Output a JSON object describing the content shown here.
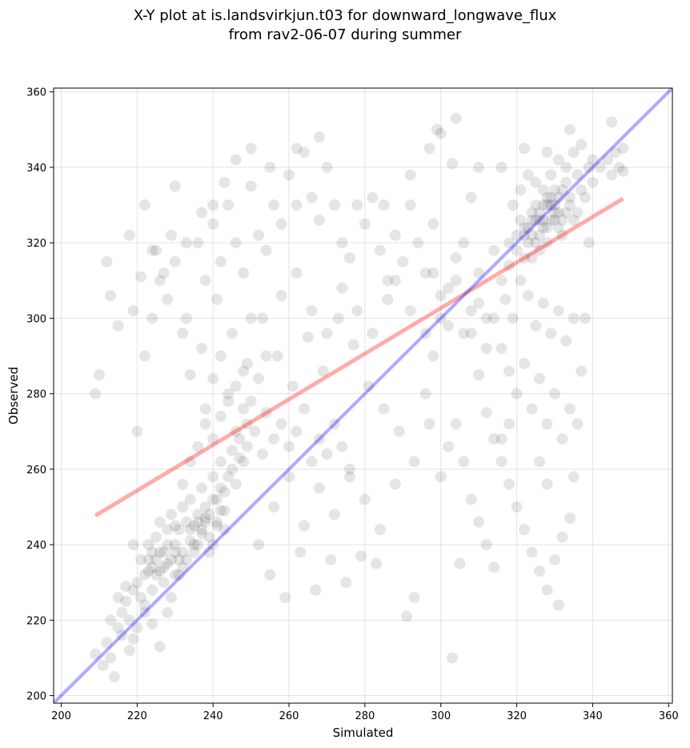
{
  "chart_data": {
    "type": "scatter",
    "title_line1": "X-Y plot at is.landsvirkjun.t03 for downward_longwave_flux",
    "title_line2": "from rav2-06-07 during summer",
    "xlabel": "Simulated",
    "ylabel": "Observed",
    "xlim": [
      198,
      361
    ],
    "ylim": [
      198,
      361
    ],
    "xticks": [
      200,
      220,
      240,
      260,
      280,
      300,
      320,
      340,
      360
    ],
    "yticks": [
      200,
      220,
      240,
      260,
      280,
      300,
      320,
      340,
      360
    ],
    "grid": true,
    "point_color": "#000000",
    "point_alpha": 0.1,
    "identity_line": {
      "color": "#0000ff",
      "x": [
        198,
        361
      ],
      "y": [
        198,
        361
      ]
    },
    "regression_line": {
      "color": "#ff0000",
      "x": [
        209,
        348
      ],
      "y": [
        247.7,
        331.7
      ]
    },
    "points": [
      [
        212,
        214
      ],
      [
        213,
        210
      ],
      [
        215,
        218
      ],
      [
        216,
        222
      ],
      [
        217,
        225
      ],
      [
        218,
        212
      ],
      [
        219,
        215
      ],
      [
        219,
        228
      ],
      [
        220,
        230
      ],
      [
        220,
        218
      ],
      [
        221,
        236
      ],
      [
        222,
        232
      ],
      [
        222,
        224
      ],
      [
        223,
        240
      ],
      [
        224,
        228
      ],
      [
        224,
        238
      ],
      [
        225,
        242
      ],
      [
        226,
        233
      ],
      [
        226,
        246
      ],
      [
        227,
        238
      ],
      [
        228,
        235
      ],
      [
        228,
        244
      ],
      [
        229,
        248
      ],
      [
        230,
        240
      ],
      [
        230,
        232
      ],
      [
        231,
        244
      ],
      [
        232,
        250
      ],
      [
        232,
        238
      ],
      [
        233,
        246
      ],
      [
        234,
        241
      ],
      [
        234,
        252
      ],
      [
        235,
        245
      ],
      [
        236,
        248
      ],
      [
        236,
        240
      ],
      [
        237,
        255
      ],
      [
        238,
        246
      ],
      [
        238,
        250
      ],
      [
        239,
        242
      ],
      [
        240,
        252
      ],
      [
        240,
        258
      ],
      [
        241,
        246
      ],
      [
        242,
        255
      ],
      [
        242,
        262
      ],
      [
        243,
        249
      ],
      [
        244,
        258
      ],
      [
        245,
        265
      ],
      [
        246,
        256
      ],
      [
        247,
        268
      ],
      [
        248,
        262
      ],
      [
        249,
        272
      ],
      [
        214,
        205
      ],
      [
        216,
        216
      ],
      [
        218,
        220
      ],
      [
        221,
        226
      ],
      [
        223,
        233
      ],
      [
        225,
        236
      ],
      [
        227,
        230
      ],
      [
        229,
        226
      ],
      [
        231,
        236
      ],
      [
        233,
        236
      ],
      [
        235,
        238
      ],
      [
        237,
        244
      ],
      [
        239,
        248
      ],
      [
        241,
        252
      ],
      [
        243,
        254
      ],
      [
        245,
        260
      ],
      [
        247,
        263
      ],
      [
        249,
        266
      ],
      [
        251,
        270
      ],
      [
        253,
        264
      ],
      [
        209,
        211
      ],
      [
        211,
        208
      ],
      [
        213,
        220
      ],
      [
        215,
        226
      ],
      [
        217,
        229
      ],
      [
        219,
        240
      ],
      [
        222,
        222
      ],
      [
        224,
        219
      ],
      [
        226,
        213
      ],
      [
        228,
        222
      ],
      [
        230,
        245
      ],
      [
        232,
        256
      ],
      [
        234,
        262
      ],
      [
        236,
        266
      ],
      [
        238,
        272
      ],
      [
        240,
        268
      ],
      [
        242,
        274
      ],
      [
        244,
        278
      ],
      [
        246,
        282
      ],
      [
        248,
        276
      ],
      [
        220,
        270
      ],
      [
        222,
        290
      ],
      [
        224,
        300
      ],
      [
        226,
        310
      ],
      [
        228,
        305
      ],
      [
        230,
        315
      ],
      [
        232,
        296
      ],
      [
        234,
        285
      ],
      [
        236,
        320
      ],
      [
        238,
        310
      ],
      [
        240,
        325
      ],
      [
        242,
        315
      ],
      [
        244,
        330
      ],
      [
        246,
        320
      ],
      [
        248,
        312
      ],
      [
        250,
        335
      ],
      [
        252,
        322
      ],
      [
        254,
        318
      ],
      [
        256,
        330
      ],
      [
        258,
        325
      ],
      [
        260,
        338
      ],
      [
        262,
        330
      ],
      [
        264,
        344
      ],
      [
        266,
        332
      ],
      [
        268,
        326
      ],
      [
        270,
        340
      ],
      [
        272,
        330
      ],
      [
        274,
        320
      ],
      [
        276,
        316
      ],
      [
        278,
        330
      ],
      [
        280,
        325
      ],
      [
        282,
        332
      ],
      [
        284,
        318
      ],
      [
        286,
        310
      ],
      [
        288,
        322
      ],
      [
        290,
        315
      ],
      [
        292,
        330
      ],
      [
        294,
        320
      ],
      [
        296,
        312
      ],
      [
        298,
        325
      ],
      [
        221,
        311
      ],
      [
        225,
        318
      ],
      [
        229,
        322
      ],
      [
        233,
        300
      ],
      [
        237,
        292
      ],
      [
        241,
        305
      ],
      [
        245,
        296
      ],
      [
        249,
        288
      ],
      [
        253,
        300
      ],
      [
        257,
        290
      ],
      [
        261,
        282
      ],
      [
        265,
        295
      ],
      [
        269,
        286
      ],
      [
        273,
        300
      ],
      [
        277,
        293
      ],
      [
        281,
        282
      ],
      [
        285,
        276
      ],
      [
        289,
        270
      ],
      [
        293,
        262
      ],
      [
        297,
        272
      ],
      [
        250,
        300
      ],
      [
        254,
        290
      ],
      [
        258,
        306
      ],
      [
        262,
        312
      ],
      [
        266,
        302
      ],
      [
        270,
        296
      ],
      [
        274,
        308
      ],
      [
        278,
        302
      ],
      [
        282,
        296
      ],
      [
        286,
        305
      ],
      [
        252,
        240
      ],
      [
        256,
        250
      ],
      [
        260,
        258
      ],
      [
        264,
        245
      ],
      [
        268,
        255
      ],
      [
        272,
        248
      ],
      [
        276,
        260
      ],
      [
        280,
        252
      ],
      [
        284,
        244
      ],
      [
        288,
        256
      ],
      [
        255,
        232
      ],
      [
        259,
        226
      ],
      [
        263,
        238
      ],
      [
        267,
        228
      ],
      [
        271,
        236
      ],
      [
        275,
        230
      ],
      [
        279,
        237
      ],
      [
        283,
        235
      ],
      [
        291,
        221
      ],
      [
        293,
        226
      ],
      [
        300,
        306
      ],
      [
        302,
        298
      ],
      [
        304,
        310
      ],
      [
        306,
        296
      ],
      [
        308,
        302
      ],
      [
        310,
        312
      ],
      [
        312,
        300
      ],
      [
        314,
        318
      ],
      [
        316,
        310
      ],
      [
        318,
        320
      ],
      [
        320,
        322
      ],
      [
        322,
        316
      ],
      [
        324,
        328
      ],
      [
        326,
        322
      ],
      [
        328,
        330
      ],
      [
        330,
        326
      ],
      [
        332,
        334
      ],
      [
        334,
        330
      ],
      [
        336,
        338
      ],
      [
        338,
        332
      ],
      [
        321,
        326
      ],
      [
        323,
        320
      ],
      [
        325,
        330
      ],
      [
        327,
        324
      ],
      [
        329,
        332
      ],
      [
        331,
        328
      ],
      [
        333,
        336
      ],
      [
        335,
        326
      ],
      [
        337,
        334
      ],
      [
        339,
        340
      ],
      [
        318,
        314
      ],
      [
        320,
        318
      ],
      [
        322,
        324
      ],
      [
        324,
        316
      ],
      [
        326,
        326
      ],
      [
        328,
        320
      ],
      [
        330,
        328
      ],
      [
        332,
        322
      ],
      [
        334,
        332
      ],
      [
        336,
        328
      ],
      [
        319,
        330
      ],
      [
        321,
        334
      ],
      [
        323,
        338
      ],
      [
        325,
        336
      ],
      [
        327,
        334
      ],
      [
        329,
        338
      ],
      [
        331,
        342
      ],
      [
        333,
        340
      ],
      [
        335,
        344
      ],
      [
        337,
        346
      ],
      [
        317,
        305
      ],
      [
        319,
        300
      ],
      [
        321,
        310
      ],
      [
        323,
        306
      ],
      [
        325,
        298
      ],
      [
        327,
        304
      ],
      [
        329,
        296
      ],
      [
        331,
        302
      ],
      [
        333,
        294
      ],
      [
        335,
        300
      ],
      [
        316,
        292
      ],
      [
        318,
        286
      ],
      [
        320,
        280
      ],
      [
        322,
        288
      ],
      [
        324,
        276
      ],
      [
        326,
        284
      ],
      [
        328,
        272
      ],
      [
        330,
        280
      ],
      [
        332,
        268
      ],
      [
        334,
        276
      ],
      [
        310,
        285
      ],
      [
        312,
        275
      ],
      [
        314,
        268
      ],
      [
        316,
        262
      ],
      [
        318,
        256
      ],
      [
        320,
        250
      ],
      [
        322,
        244
      ],
      [
        324,
        238
      ],
      [
        326,
        262
      ],
      [
        328,
        256
      ],
      [
        300,
        258
      ],
      [
        302,
        266
      ],
      [
        304,
        272
      ],
      [
        306,
        262
      ],
      [
        308,
        252
      ],
      [
        310,
        246
      ],
      [
        312,
        240
      ],
      [
        314,
        234
      ],
      [
        316,
        268
      ],
      [
        318,
        272
      ],
      [
        296,
        280
      ],
      [
        298,
        290
      ],
      [
        300,
        300
      ],
      [
        302,
        308
      ],
      [
        304,
        316
      ],
      [
        306,
        320
      ],
      [
        308,
        296
      ],
      [
        310,
        304
      ],
      [
        312,
        292
      ],
      [
        314,
        300
      ],
      [
        340,
        336
      ],
      [
        342,
        340
      ],
      [
        344,
        342
      ],
      [
        345,
        338
      ],
      [
        346,
        344
      ],
      [
        347,
        340
      ],
      [
        348,
        339
      ],
      [
        339,
        320
      ],
      [
        338,
        300
      ],
      [
        337,
        286
      ],
      [
        336,
        272
      ],
      [
        335,
        258
      ],
      [
        334,
        247
      ],
      [
        332,
        242
      ],
      [
        330,
        236
      ],
      [
        328,
        228
      ],
      [
        331,
        224
      ],
      [
        326,
        233
      ],
      [
        303,
        210
      ],
      [
        305,
        235
      ],
      [
        300,
        349
      ],
      [
        304,
        353
      ],
      [
        310,
        340
      ],
      [
        316,
        340
      ],
      [
        322,
        345
      ],
      [
        328,
        344
      ],
      [
        334,
        350
      ],
      [
        340,
        342
      ],
      [
        345,
        352
      ],
      [
        348,
        345
      ],
      [
        209,
        280
      ],
      [
        210,
        285
      ],
      [
        212,
        315
      ],
      [
        213,
        306
      ],
      [
        215,
        298
      ],
      [
        218,
        322
      ],
      [
        219,
        302
      ],
      [
        222,
        330
      ],
      [
        224,
        318
      ],
      [
        227,
        312
      ],
      [
        230,
        335
      ],
      [
        233,
        320
      ],
      [
        237,
        328
      ],
      [
        240,
        330
      ],
      [
        243,
        336
      ],
      [
        246,
        342
      ],
      [
        250,
        345
      ],
      [
        255,
        340
      ],
      [
        262,
        345
      ],
      [
        268,
        348
      ],
      [
        285,
        330
      ],
      [
        292,
        338
      ],
      [
        297,
        345
      ],
      [
        299,
        350
      ],
      [
        303,
        341
      ],
      [
        308,
        332
      ],
      [
        288,
        310
      ],
      [
        292,
        302
      ],
      [
        296,
        296
      ],
      [
        298,
        312
      ],
      [
        238,
        276
      ],
      [
        240,
        284
      ],
      [
        242,
        290
      ],
      [
        244,
        280
      ],
      [
        246,
        270
      ],
      [
        248,
        286
      ],
      [
        250,
        278
      ],
      [
        252,
        284
      ],
      [
        254,
        275
      ],
      [
        256,
        268
      ],
      [
        258,
        272
      ],
      [
        260,
        266
      ],
      [
        262,
        270
      ],
      [
        264,
        276
      ],
      [
        266,
        262
      ],
      [
        268,
        268
      ],
      [
        270,
        264
      ],
      [
        272,
        272
      ],
      [
        274,
        266
      ],
      [
        276,
        258
      ],
      [
        240,
        240
      ],
      [
        241,
        245
      ],
      [
        239,
        238
      ],
      [
        238,
        247
      ],
      [
        237,
        243
      ],
      [
        236,
        246
      ],
      [
        242,
        249
      ],
      [
        243,
        244
      ],
      [
        235,
        240
      ],
      [
        234,
        244
      ],
      [
        228,
        240
      ],
      [
        229,
        236
      ],
      [
        227,
        234
      ],
      [
        226,
        238
      ],
      [
        225,
        232
      ],
      [
        230,
        238
      ],
      [
        231,
        232
      ],
      [
        232,
        234
      ],
      [
        224,
        234
      ],
      [
        223,
        236
      ],
      [
        324,
        322
      ],
      [
        325,
        326
      ],
      [
        326,
        328
      ],
      [
        327,
        326
      ],
      [
        328,
        324
      ],
      [
        329,
        326
      ],
      [
        330,
        330
      ],
      [
        331,
        324
      ],
      [
        332,
        326
      ],
      [
        333,
        328
      ],
      [
        322,
        322
      ],
      [
        323,
        324
      ],
      [
        324,
        326
      ],
      [
        325,
        320
      ],
      [
        326,
        318
      ],
      [
        327,
        330
      ],
      [
        328,
        332
      ],
      [
        329,
        330
      ],
      [
        330,
        334
      ],
      [
        331,
        332
      ]
    ]
  }
}
